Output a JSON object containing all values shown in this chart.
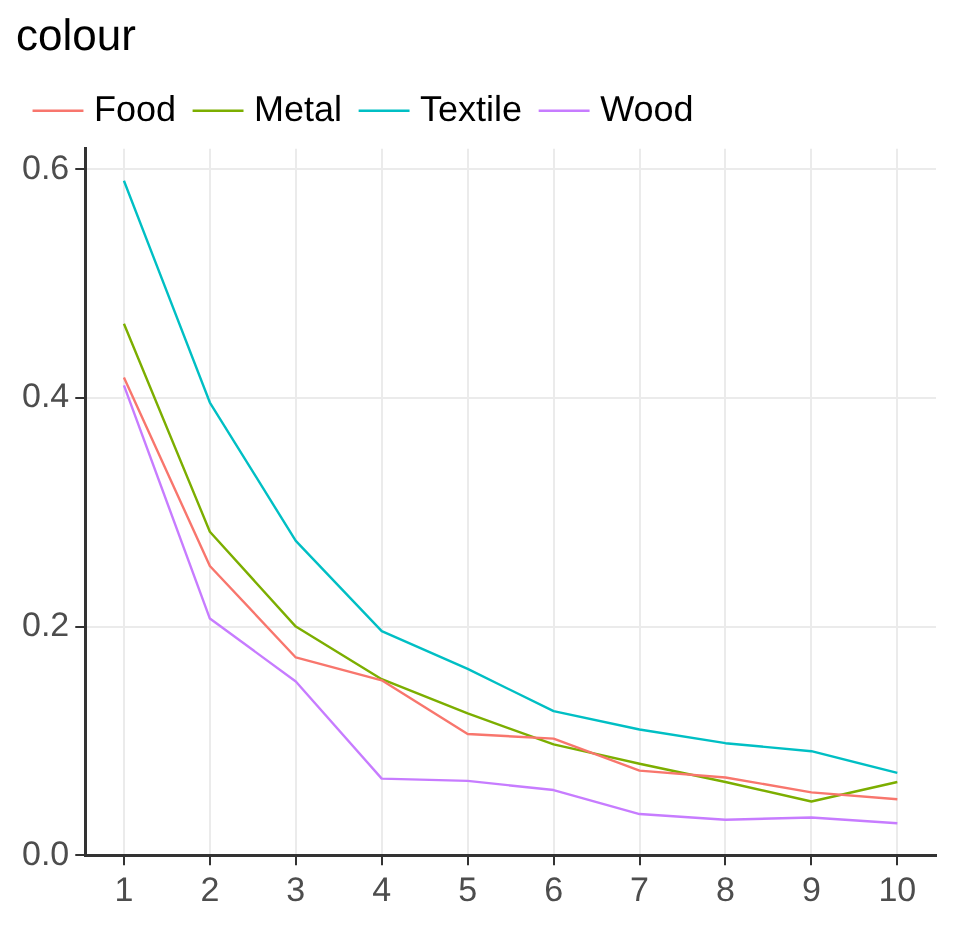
{
  "chart_data": {
    "type": "line",
    "legend_title": "colour",
    "x": [
      1,
      2,
      3,
      4,
      5,
      6,
      7,
      8,
      9,
      10
    ],
    "series": [
      {
        "name": "Food",
        "color": "#f8766d",
        "values": [
          0.418,
          0.253,
          0.173,
          0.153,
          0.106,
          0.102,
          0.074,
          0.068,
          0.055,
          0.049
        ]
      },
      {
        "name": "Metal",
        "color": "#7cae00",
        "values": [
          0.465,
          0.283,
          0.2,
          0.154,
          0.124,
          0.097,
          0.08,
          0.064,
          0.047,
          0.064
        ]
      },
      {
        "name": "Textile",
        "color": "#00bfc4",
        "values": [
          0.59,
          0.396,
          0.275,
          0.196,
          0.163,
          0.126,
          0.11,
          0.098,
          0.091,
          0.072
        ]
      },
      {
        "name": "Wood",
        "color": "#c77cff",
        "values": [
          0.411,
          0.207,
          0.152,
          0.067,
          0.065,
          0.057,
          0.036,
          0.031,
          0.033,
          0.028
        ]
      }
    ],
    "xlim": [
      0.55,
      10.45
    ],
    "xticks": [
      1,
      2,
      3,
      4,
      5,
      6,
      7,
      8,
      9,
      10
    ],
    "ylim": [
      0,
      0.618
    ],
    "yticks": [
      {
        "value": 0,
        "label": "0.0"
      },
      {
        "value": 0.2,
        "label": "0.2"
      },
      {
        "value": 0.4,
        "label": "0.4"
      },
      {
        "value": 0.6,
        "label": "0.6"
      }
    ],
    "grid": true,
    "legend": "top",
    "marker": "none",
    "line_style": "solid"
  }
}
